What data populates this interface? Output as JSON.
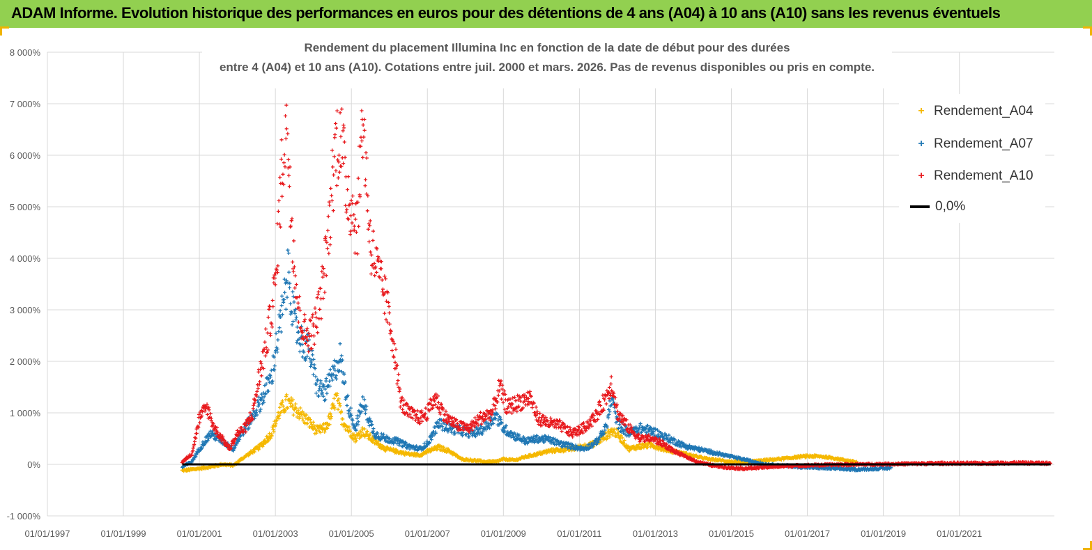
{
  "banner": {
    "title": "ADAM Informe. Evolution historique des performances en euros pour des détentions de 4 ans (A04) à 10 ans (A10) sans les revenus éventuels"
  },
  "colors": {
    "banner": "#92d050",
    "a04": "#f5b800",
    "a07": "#1f77b4",
    "a10": "#e8191d",
    "zero": "#000000",
    "grid": "#d9d9d9"
  },
  "chart_data": {
    "type": "scatter",
    "title_line1": "Rendement du placement Illumina Inc en fonction de la date de début pour des durées",
    "title_line2": "entre 4 (A04) et 10 ans (A10). Cotations entre juil. 2000 et mars. 2026. Pas de revenus disponibles ou pris en compte.",
    "xlabel": "",
    "ylabel": "",
    "x_ticks": [
      "01/01/1997",
      "01/01/1999",
      "01/01/2001",
      "01/01/2003",
      "01/01/2005",
      "01/01/2007",
      "01/01/2009",
      "01/01/2011",
      "01/01/2013",
      "01/01/2015",
      "01/01/2017",
      "01/01/2019",
      "01/01/2021"
    ],
    "x_range_years": [
      1997.0,
      2023.5
    ],
    "y_ticks": [
      "-1 000%",
      "0%",
      "1 000%",
      "2 000%",
      "3 000%",
      "4 000%",
      "5 000%",
      "6 000%",
      "7 000%",
      "8 000%"
    ],
    "y_range": [
      -1000,
      8000
    ],
    "legend_position": "top-right",
    "series": [
      {
        "name": "Rendement_A04",
        "x": [
          2000.55,
          2000.8,
          2001.0,
          2001.3,
          2001.6,
          2001.9,
          2002.1,
          2002.3,
          2002.6,
          2002.9,
          2003.1,
          2003.3,
          2003.5,
          2003.7,
          2003.9,
          2004.1,
          2004.3,
          2004.45,
          2004.6,
          2004.75,
          2004.9,
          2005.1,
          2005.3,
          2005.6,
          2005.9,
          2006.2,
          2006.5,
          2006.8,
          2007.0,
          2007.3,
          2007.6,
          2007.9,
          2008.2,
          2008.5,
          2008.8,
          2009.0,
          2009.3,
          2009.6,
          2009.9,
          2010.2,
          2010.5,
          2010.8,
          2011.1,
          2011.4,
          2011.7,
          2011.85,
          2012.0,
          2012.3,
          2012.6,
          2012.9,
          2013.2,
          2013.5,
          2013.8,
          2014.1,
          2014.4,
          2014.7,
          2015.0,
          2015.3,
          2015.6,
          2015.9,
          2016.2,
          2016.5,
          2016.8,
          2017.1,
          2017.4,
          2017.7,
          2018.0,
          2018.3
        ],
        "values": [
          -120,
          -100,
          -80,
          -50,
          0,
          -20,
          100,
          200,
          350,
          600,
          1000,
          1200,
          1100,
          950,
          800,
          650,
          700,
          900,
          1300,
          900,
          700,
          500,
          650,
          450,
          300,
          250,
          200,
          180,
          250,
          330,
          250,
          100,
          80,
          50,
          50,
          100,
          80,
          150,
          200,
          260,
          280,
          300,
          350,
          400,
          550,
          650,
          600,
          300,
          350,
          380,
          300,
          250,
          200,
          150,
          100,
          80,
          50,
          40,
          60,
          80,
          100,
          120,
          150,
          160,
          150,
          120,
          80,
          40
        ]
      },
      {
        "name": "Rendement_A07",
        "x": [
          2000.55,
          2000.8,
          2001.0,
          2001.3,
          2001.6,
          2001.9,
          2002.1,
          2002.3,
          2002.6,
          2002.9,
          2003.0,
          2003.2,
          2003.35,
          2003.5,
          2003.7,
          2003.9,
          2004.1,
          2004.3,
          2004.5,
          2004.7,
          2004.9,
          2005.1,
          2005.3,
          2005.6,
          2005.9,
          2006.2,
          2006.5,
          2006.8,
          2007.0,
          2007.3,
          2007.6,
          2007.9,
          2008.2,
          2008.5,
          2008.8,
          2009.0,
          2009.3,
          2009.6,
          2009.9,
          2010.2,
          2010.5,
          2010.8,
          2011.1,
          2011.4,
          2011.7,
          2011.85,
          2012.0,
          2012.3,
          2012.6,
          2012.9,
          2013.2,
          2013.5,
          2013.8,
          2014.1,
          2014.4,
          2014.7,
          2015.0,
          2015.3,
          2015.6,
          2015.9,
          2016.2,
          2016.5,
          2016.8,
          2017.1,
          2017.4,
          2017.7,
          2018.0,
          2018.3,
          2018.6,
          2018.9,
          2019.2
        ],
        "values": [
          -50,
          50,
          300,
          600,
          450,
          300,
          600,
          800,
          1200,
          1700,
          2200,
          3000,
          3800,
          2700,
          2400,
          2200,
          1500,
          1400,
          1700,
          2100,
          1200,
          700,
          1200,
          600,
          500,
          450,
          350,
          300,
          400,
          800,
          700,
          650,
          600,
          700,
          950,
          700,
          550,
          450,
          500,
          480,
          400,
          350,
          300,
          400,
          700,
          1300,
          800,
          600,
          700,
          650,
          550,
          450,
          350,
          300,
          250,
          200,
          150,
          100,
          50,
          0,
          -20,
          -30,
          -50,
          -60,
          -70,
          -80,
          -90,
          -100,
          -90,
          -80,
          -70
        ]
      },
      {
        "name": "Rendement_A10",
        "x": [
          2000.55,
          2000.8,
          2001.0,
          2001.2,
          2001.4,
          2001.6,
          2001.8,
          2002.0,
          2002.2,
          2002.4,
          2002.6,
          2002.8,
          2003.0,
          2003.15,
          2003.3,
          2003.45,
          2003.6,
          2003.8,
          2004.0,
          2004.2,
          2004.4,
          2004.55,
          2004.7,
          2004.85,
          2005.0,
          2005.15,
          2005.3,
          2005.5,
          2005.7,
          2005.9,
          2006.1,
          2006.3,
          2006.5,
          2006.8,
          2007.0,
          2007.2,
          2007.5,
          2007.8,
          2008.1,
          2008.4,
          2008.7,
          2008.9,
          2009.1,
          2009.4,
          2009.7,
          2009.9,
          2010.2,
          2010.5,
          2010.8,
          2011.1,
          2011.4,
          2011.7,
          2011.85,
          2012.0,
          2012.3,
          2012.6,
          2012.9,
          2013.2,
          2013.5,
          2013.8,
          2014.1,
          2014.5,
          2014.9,
          2015.3,
          2015.8,
          2016.5,
          2017.5,
          2018.5,
          2019.5,
          2020.5,
          2021.5,
          2022.5,
          2023.4
        ],
        "values": [
          50,
          200,
          900,
          1100,
          700,
          500,
          300,
          600,
          700,
          1000,
          1800,
          2500,
          3500,
          5500,
          6800,
          4500,
          3000,
          2500,
          2600,
          3200,
          4500,
          6000,
          6500,
          5500,
          5000,
          4600,
          6800,
          4300,
          3700,
          3200,
          2400,
          1200,
          1000,
          900,
          1000,
          1300,
          900,
          750,
          700,
          900,
          1000,
          1500,
          1100,
          1200,
          1300,
          900,
          800,
          750,
          600,
          700,
          900,
          1300,
          1600,
          1000,
          700,
          500,
          500,
          400,
          250,
          150,
          50,
          -20,
          -60,
          -80,
          -60,
          -30,
          -10,
          0,
          10,
          20,
          20,
          30,
          20
        ]
      },
      {
        "name": "0,0%",
        "x": [
          2000.55,
          2023.4
        ],
        "values": [
          0,
          0
        ]
      }
    ]
  }
}
